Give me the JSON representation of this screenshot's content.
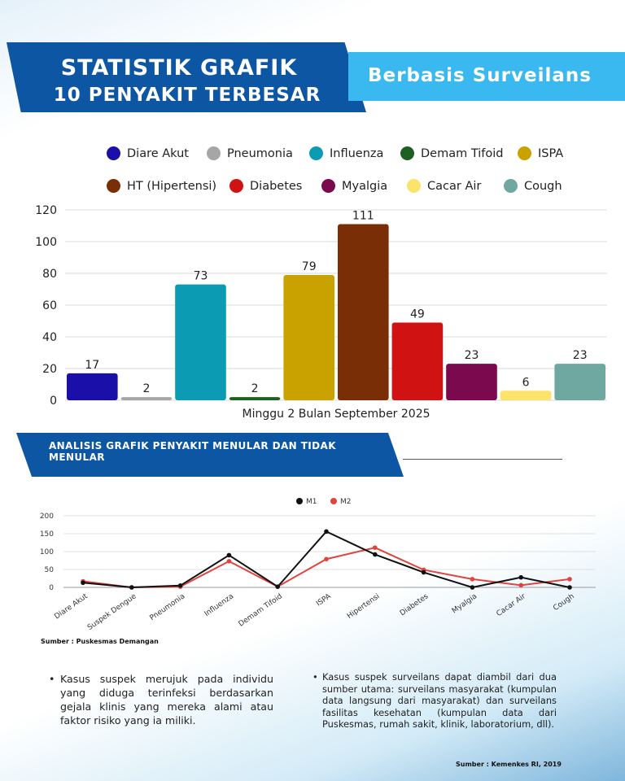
{
  "header": {
    "title_line1": "STATISTIK GRAFIK",
    "title_line2": "10 PENYAKIT TERBESAR",
    "tag": "Berbasis Surveilans"
  },
  "colors": {
    "banner_dark": "#0d56a3",
    "banner_light": "#39b9ef",
    "m1": "#111111",
    "m2": "#e0443f"
  },
  "chart_data": [
    {
      "type": "bar",
      "categories": [
        "Diare Akut",
        "Pneumonia",
        "Influenza",
        "Demam Tifoid",
        "ISPA",
        "HT (Hipertensi)",
        "Diabetes",
        "Myalgia",
        "Cacar Air",
        "Cough"
      ],
      "values": [
        17,
        2,
        73,
        2,
        79,
        111,
        49,
        23,
        6,
        23
      ],
      "colors": [
        "#1a0fa8",
        "#a6a6a6",
        "#0b9bb3",
        "#1e5f22",
        "#c9a200",
        "#7a2e06",
        "#d01212",
        "#7a0a4d",
        "#fbe36c",
        "#6fa8a0"
      ],
      "xlabel": "Minggu 2 Bulan September 2025",
      "ylabel": "",
      "ylim": [
        0,
        120
      ],
      "yticks": [
        0,
        20,
        40,
        60,
        80,
        100,
        120
      ],
      "legend_position": "top",
      "grid": true
    },
    {
      "type": "line",
      "categories": [
        "Diare Akut",
        "Suspek Dengue",
        "Pneumonia",
        "Influenza",
        "Demam Tifoid",
        "ISPA",
        "Hipertensi",
        "Diabetes",
        "Myalgia",
        "Cacar Air",
        "Cough"
      ],
      "series": [
        {
          "name": "M1",
          "color": "#111111",
          "values": [
            13,
            0,
            5,
            90,
            2,
            156,
            92,
            42,
            0,
            28,
            0
          ]
        },
        {
          "name": "M2",
          "color": "#e0443f",
          "values": [
            17,
            0,
            2,
            73,
            2,
            79,
            111,
            49,
            23,
            6,
            23
          ]
        }
      ],
      "ylim": [
        0,
        200
      ],
      "yticks": [
        0,
        50,
        100,
        150,
        200
      ],
      "legend_position": "top",
      "grid": true
    }
  ],
  "section": {
    "title": "ANALISIS GRAFIK PENYAKIT MENULAR DAN TIDAK MENULAR"
  },
  "source1": "Sumber : Puskesmas Demangan",
  "bullets": [
    "Kasus suspek merujuk pada individu yang diduga terinfeksi berdasarkan gejala klinis yang mereka alami atau faktor risiko yang ia miliki.",
    "Kasus suspek surveilans dapat diambil dari dua sumber utama: surveilans masyarakat (kumpulan data langsung dari masyarakat) dan surveilans fasilitas kesehatan (kumpulan data dari Puskesmas, rumah sakit, klinik, laboratorium, dll)."
  ],
  "source2": "Sumber : Kemenkes RI, 2019"
}
